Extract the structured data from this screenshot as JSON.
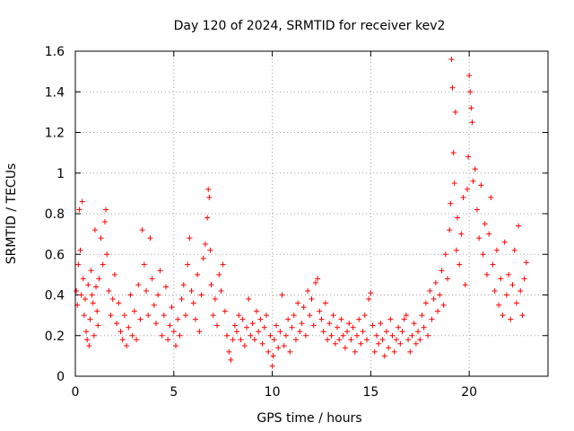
{
  "chart_data": {
    "type": "scatter",
    "title": "Day 120 of 2024, SRMTID for receiver kev2",
    "xlabel": "GPS time / hours",
    "ylabel": "SRMTID / TECUs",
    "xlim": [
      0,
      24
    ],
    "ylim": [
      0,
      1.6
    ],
    "x_ticks": [
      0,
      5,
      10,
      15,
      20
    ],
    "x_tick_labels": [
      "0",
      "5",
      "10",
      "15",
      "20"
    ],
    "y_ticks": [
      0,
      0.2,
      0.4,
      0.6,
      0.8,
      1.0,
      1.2,
      1.4,
      1.6
    ],
    "y_tick_labels": [
      "0",
      "0.2",
      "0.4",
      "0.6",
      "0.8",
      "1",
      "1.2",
      "1.4",
      "1.6"
    ],
    "grid": true,
    "marker": "+",
    "marker_color": "#ff0000",
    "series": [
      {
        "name": "SRMTID",
        "points": [
          [
            0.05,
            0.42
          ],
          [
            0.1,
            0.35
          ],
          [
            0.15,
            0.55
          ],
          [
            0.2,
            0.82
          ],
          [
            0.25,
            0.62
          ],
          [
            0.3,
            0.4
          ],
          [
            0.35,
            0.86
          ],
          [
            0.4,
            0.48
          ],
          [
            0.45,
            0.3
          ],
          [
            0.5,
            0.38
          ],
          [
            0.55,
            0.22
          ],
          [
            0.6,
            0.18
          ],
          [
            0.65,
            0.45
          ],
          [
            0.7,
            0.15
          ],
          [
            0.75,
            0.28
          ],
          [
            0.8,
            0.52
          ],
          [
            0.85,
            0.4
          ],
          [
            0.9,
            0.36
          ],
          [
            0.95,
            0.2
          ],
          [
            1.0,
            0.72
          ],
          [
            1.05,
            0.44
          ],
          [
            1.1,
            0.32
          ],
          [
            1.15,
            0.25
          ],
          [
            1.2,
            0.48
          ],
          [
            1.3,
            0.68
          ],
          [
            1.4,
            0.55
          ],
          [
            1.5,
            0.76
          ],
          [
            1.55,
            0.82
          ],
          [
            1.6,
            0.6
          ],
          [
            1.7,
            0.42
          ],
          [
            1.8,
            0.3
          ],
          [
            1.9,
            0.38
          ],
          [
            2.0,
            0.5
          ],
          [
            2.1,
            0.26
          ],
          [
            2.2,
            0.36
          ],
          [
            2.3,
            0.22
          ],
          [
            2.4,
            0.18
          ],
          [
            2.5,
            0.3
          ],
          [
            2.6,
            0.15
          ],
          [
            2.7,
            0.24
          ],
          [
            2.8,
            0.4
          ],
          [
            2.9,
            0.2
          ],
          [
            3.0,
            0.32
          ],
          [
            3.1,
            0.18
          ],
          [
            3.2,
            0.45
          ],
          [
            3.3,
            0.28
          ],
          [
            3.4,
            0.72
          ],
          [
            3.5,
            0.55
          ],
          [
            3.6,
            0.42
          ],
          [
            3.7,
            0.3
          ],
          [
            3.8,
            0.68
          ],
          [
            3.9,
            0.48
          ],
          [
            4.0,
            0.35
          ],
          [
            4.1,
            0.26
          ],
          [
            4.2,
            0.4
          ],
          [
            4.3,
            0.52
          ],
          [
            4.4,
            0.2
          ],
          [
            4.5,
            0.3
          ],
          [
            4.6,
            0.44
          ],
          [
            4.7,
            0.18
          ],
          [
            4.8,
            0.25
          ],
          [
            4.9,
            0.34
          ],
          [
            5.0,
            0.22
          ],
          [
            5.1,
            0.15
          ],
          [
            5.2,
            0.28
          ],
          [
            5.3,
            0.2
          ],
          [
            5.4,
            0.38
          ],
          [
            5.5,
            0.45
          ],
          [
            5.6,
            0.3
          ],
          [
            5.7,
            0.55
          ],
          [
            5.8,
            0.68
          ],
          [
            5.9,
            0.42
          ],
          [
            6.0,
            0.36
          ],
          [
            6.1,
            0.28
          ],
          [
            6.2,
            0.5
          ],
          [
            6.3,
            0.22
          ],
          [
            6.4,
            0.4
          ],
          [
            6.5,
            0.58
          ],
          [
            6.6,
            0.65
          ],
          [
            6.7,
            0.78
          ],
          [
            6.75,
            0.92
          ],
          [
            6.8,
            0.88
          ],
          [
            6.85,
            0.62
          ],
          [
            6.9,
            0.45
          ],
          [
            7.0,
            0.3
          ],
          [
            7.1,
            0.38
          ],
          [
            7.2,
            0.25
          ],
          [
            7.3,
            0.5
          ],
          [
            7.4,
            0.42
          ],
          [
            7.5,
            0.55
          ],
          [
            7.6,
            0.32
          ],
          [
            7.7,
            0.2
          ],
          [
            7.8,
            0.12
          ],
          [
            7.9,
            0.08
          ],
          [
            8.0,
            0.18
          ],
          [
            8.1,
            0.25
          ],
          [
            8.2,
            0.22
          ],
          [
            8.3,
            0.3
          ],
          [
            8.4,
            0.18
          ],
          [
            8.5,
            0.28
          ],
          [
            8.6,
            0.15
          ],
          [
            8.7,
            0.24
          ],
          [
            8.8,
            0.38
          ],
          [
            8.9,
            0.2
          ],
          [
            9.0,
            0.26
          ],
          [
            9.1,
            0.18
          ],
          [
            9.2,
            0.32
          ],
          [
            9.3,
            0.22
          ],
          [
            9.4,
            0.28
          ],
          [
            9.5,
            0.16
          ],
          [
            9.6,
            0.24
          ],
          [
            9.7,
            0.3
          ],
          [
            9.8,
            0.12
          ],
          [
            9.9,
            0.2
          ],
          [
            10.0,
            0.05
          ],
          [
            10.05,
            0.1
          ],
          [
            10.1,
            0.18
          ],
          [
            10.2,
            0.25
          ],
          [
            10.3,
            0.14
          ],
          [
            10.4,
            0.22
          ],
          [
            10.5,
            0.4
          ],
          [
            10.6,
            0.15
          ],
          [
            10.7,
            0.2
          ],
          [
            10.8,
            0.28
          ],
          [
            10.9,
            0.12
          ],
          [
            11.0,
            0.24
          ],
          [
            11.1,
            0.3
          ],
          [
            11.2,
            0.18
          ],
          [
            11.3,
            0.36
          ],
          [
            11.4,
            0.22
          ],
          [
            11.5,
            0.26
          ],
          [
            11.6,
            0.34
          ],
          [
            11.7,
            0.2
          ],
          [
            11.8,
            0.42
          ],
          [
            11.9,
            0.3
          ],
          [
            12.0,
            0.38
          ],
          [
            12.1,
            0.25
          ],
          [
            12.2,
            0.46
          ],
          [
            12.3,
            0.48
          ],
          [
            12.4,
            0.32
          ],
          [
            12.5,
            0.28
          ],
          [
            12.6,
            0.22
          ],
          [
            12.7,
            0.36
          ],
          [
            12.8,
            0.18
          ],
          [
            12.9,
            0.26
          ],
          [
            13.0,
            0.2
          ],
          [
            13.1,
            0.3
          ],
          [
            13.2,
            0.16
          ],
          [
            13.3,
            0.24
          ],
          [
            13.4,
            0.18
          ],
          [
            13.5,
            0.28
          ],
          [
            13.6,
            0.2
          ],
          [
            13.7,
            0.14
          ],
          [
            13.8,
            0.22
          ],
          [
            13.9,
            0.26
          ],
          [
            14.0,
            0.18
          ],
          [
            14.1,
            0.24
          ],
          [
            14.2,
            0.12
          ],
          [
            14.3,
            0.2
          ],
          [
            14.4,
            0.28
          ],
          [
            14.5,
            0.16
          ],
          [
            14.6,
            0.22
          ],
          [
            14.7,
            0.3
          ],
          [
            14.8,
            0.18
          ],
          [
            14.9,
            0.38
          ],
          [
            15.0,
            0.41
          ],
          [
            15.1,
            0.25
          ],
          [
            15.2,
            0.12
          ],
          [
            15.3,
            0.2
          ],
          [
            15.4,
            0.16
          ],
          [
            15.5,
            0.26
          ],
          [
            15.6,
            0.18
          ],
          [
            15.7,
            0.1
          ],
          [
            15.8,
            0.22
          ],
          [
            15.9,
            0.14
          ],
          [
            16.0,
            0.28
          ],
          [
            16.1,
            0.2
          ],
          [
            16.2,
            0.12
          ],
          [
            16.3,
            0.18
          ],
          [
            16.4,
            0.24
          ],
          [
            16.5,
            0.16
          ],
          [
            16.6,
            0.22
          ],
          [
            16.7,
            0.28
          ],
          [
            16.8,
            0.3
          ],
          [
            16.9,
            0.18
          ],
          [
            17.0,
            0.12
          ],
          [
            17.1,
            0.2
          ],
          [
            17.2,
            0.26
          ],
          [
            17.3,
            0.16
          ],
          [
            17.4,
            0.22
          ],
          [
            17.5,
            0.18
          ],
          [
            17.6,
            0.3
          ],
          [
            17.7,
            0.24
          ],
          [
            17.8,
            0.36
          ],
          [
            17.9,
            0.2
          ],
          [
            18.0,
            0.42
          ],
          [
            18.1,
            0.28
          ],
          [
            18.2,
            0.38
          ],
          [
            18.3,
            0.46
          ],
          [
            18.4,
            0.32
          ],
          [
            18.5,
            0.4
          ],
          [
            18.6,
            0.52
          ],
          [
            18.7,
            0.35
          ],
          [
            18.8,
            0.6
          ],
          [
            18.9,
            0.48
          ],
          [
            19.0,
            0.72
          ],
          [
            19.05,
            0.85
          ],
          [
            19.1,
            1.56
          ],
          [
            19.15,
            1.42
          ],
          [
            19.2,
            1.1
          ],
          [
            19.25,
            0.95
          ],
          [
            19.3,
            1.3
          ],
          [
            19.35,
            0.62
          ],
          [
            19.4,
            0.78
          ],
          [
            19.5,
            0.55
          ],
          [
            19.6,
            0.7
          ],
          [
            19.7,
            0.88
          ],
          [
            19.8,
            0.45
          ],
          [
            19.9,
            0.92
          ],
          [
            19.95,
            1.08
          ],
          [
            20.0,
            1.48
          ],
          [
            20.05,
            1.4
          ],
          [
            20.1,
            1.32
          ],
          [
            20.15,
            1.25
          ],
          [
            20.2,
            0.96
          ],
          [
            20.3,
            1.02
          ],
          [
            20.4,
            0.82
          ],
          [
            20.5,
            0.68
          ],
          [
            20.6,
            0.94
          ],
          [
            20.7,
            0.6
          ],
          [
            20.8,
            0.75
          ],
          [
            20.9,
            0.5
          ],
          [
            21.0,
            0.7
          ],
          [
            21.1,
            0.88
          ],
          [
            21.2,
            0.55
          ],
          [
            21.3,
            0.42
          ],
          [
            21.4,
            0.62
          ],
          [
            21.5,
            0.35
          ],
          [
            21.6,
            0.48
          ],
          [
            21.7,
            0.3
          ],
          [
            21.8,
            0.66
          ],
          [
            21.9,
            0.4
          ],
          [
            22.0,
            0.5
          ],
          [
            22.1,
            0.28
          ],
          [
            22.2,
            0.45
          ],
          [
            22.3,
            0.62
          ],
          [
            22.4,
            0.36
          ],
          [
            22.5,
            0.74
          ],
          [
            22.6,
            0.42
          ],
          [
            22.7,
            0.3
          ],
          [
            22.8,
            0.48
          ],
          [
            22.9,
            0.56
          ]
        ]
      }
    ]
  }
}
